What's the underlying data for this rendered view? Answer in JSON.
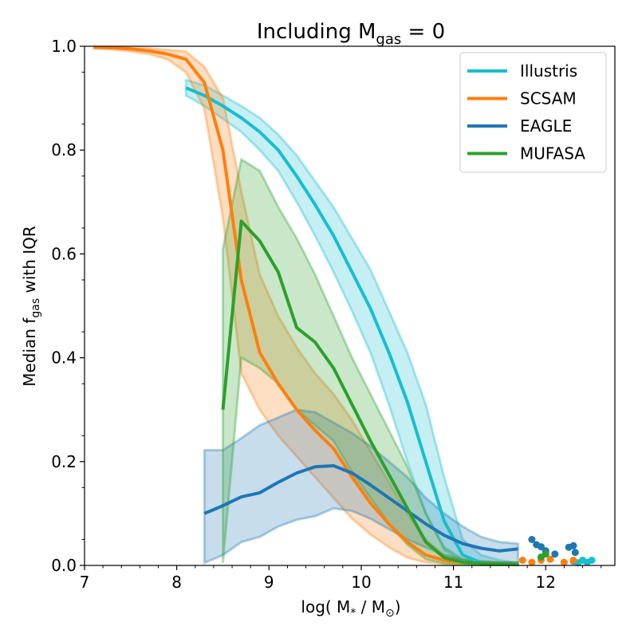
{
  "chart_data": {
    "type": "line",
    "title_main": "Including M",
    "title_sub": "gas",
    "title_tail": " = 0",
    "xlabel_pre": "log( M",
    "xlabel_sub": "*",
    "xlabel_mid": " / M",
    "xlabel_sub2": "⊙",
    "xlabel_post": ")",
    "ylabel_pre": "Median f",
    "ylabel_sub": "gas",
    "ylabel_post": "   with IQR",
    "xlim": [
      7,
      12.75
    ],
    "ylim": [
      0,
      1
    ],
    "xticks": [
      "7",
      "8",
      "9",
      "10",
      "11",
      "12"
    ],
    "yticks": [
      "0.0",
      "0.2",
      "0.4",
      "0.6",
      "0.8",
      "1.0"
    ],
    "legend_position": "top-right",
    "series": [
      {
        "name": "Illustris",
        "color": "#17becf",
        "x": [
          8.1,
          8.3,
          8.5,
          8.7,
          8.9,
          9.1,
          9.3,
          9.5,
          9.7,
          9.9,
          10.1,
          10.3,
          10.5,
          10.7,
          10.9,
          11.1,
          11.3,
          11.5,
          11.7
        ],
        "median": [
          0.92,
          0.905,
          0.885,
          0.862,
          0.835,
          0.8,
          0.75,
          0.695,
          0.635,
          0.565,
          0.495,
          0.41,
          0.315,
          0.2,
          0.085,
          0.02,
          0.005,
          0.003,
          0.002
        ],
        "q1": [
          0.905,
          0.885,
          0.86,
          0.835,
          0.8,
          0.76,
          0.7,
          0.635,
          0.565,
          0.49,
          0.41,
          0.31,
          0.2,
          0.1,
          0.03,
          0.005,
          0.002,
          0.001,
          0.001
        ],
        "q3": [
          0.935,
          0.925,
          0.905,
          0.885,
          0.862,
          0.83,
          0.79,
          0.74,
          0.69,
          0.63,
          0.57,
          0.49,
          0.41,
          0.31,
          0.17,
          0.05,
          0.02,
          0.01,
          0.005
        ],
        "points_x": [
          12.3,
          12.35,
          12.4,
          12.45,
          12.5
        ],
        "points_y": [
          0.008,
          0.005,
          0.01,
          0.006,
          0.01
        ]
      },
      {
        "name": "SCSAM",
        "color": "#ff7f0e",
        "x": [
          7.1,
          7.3,
          7.5,
          7.7,
          7.9,
          8.1,
          8.3,
          8.5,
          8.7,
          8.9,
          9.1,
          9.3,
          9.5,
          9.7,
          9.9,
          10.1,
          10.3,
          10.5,
          10.7,
          10.9,
          11.1,
          11.3,
          11.5,
          11.7
        ],
        "median": [
          0.998,
          0.997,
          0.995,
          0.991,
          0.985,
          0.975,
          0.93,
          0.8,
          0.55,
          0.41,
          0.35,
          0.3,
          0.26,
          0.225,
          0.17,
          0.12,
          0.08,
          0.045,
          0.02,
          0.01,
          0.006,
          0.004,
          0.003,
          0.002
        ],
        "q1": [
          0.996,
          0.994,
          0.99,
          0.985,
          0.975,
          0.95,
          0.88,
          0.67,
          0.37,
          0.3,
          0.25,
          0.21,
          0.17,
          0.13,
          0.09,
          0.06,
          0.035,
          0.015,
          0.006,
          0.003,
          0.002,
          0.001,
          0.001,
          0.001
        ],
        "q3": [
          0.999,
          0.999,
          0.998,
          0.996,
          0.993,
          0.99,
          0.96,
          0.9,
          0.72,
          0.56,
          0.48,
          0.42,
          0.37,
          0.33,
          0.28,
          0.22,
          0.16,
          0.1,
          0.05,
          0.02,
          0.012,
          0.008,
          0.006,
          0.005
        ],
        "points_x": [
          11.75,
          11.85,
          11.95,
          12.05,
          12.2,
          12.3
        ],
        "points_y": [
          0.01,
          0.006,
          0.01,
          0.012,
          0.006,
          0.01
        ]
      },
      {
        "name": "EAGLE",
        "color": "#1f77b4",
        "x": [
          8.3,
          8.5,
          8.7,
          8.9,
          9.1,
          9.3,
          9.5,
          9.7,
          9.9,
          10.1,
          10.3,
          10.5,
          10.7,
          10.9,
          11.1,
          11.3,
          11.5,
          11.7
        ],
        "median": [
          0.1,
          0.115,
          0.132,
          0.14,
          0.16,
          0.178,
          0.19,
          0.192,
          0.178,
          0.155,
          0.13,
          0.105,
          0.08,
          0.058,
          0.042,
          0.033,
          0.028,
          0.032
        ],
        "q1": [
          0.005,
          0.02,
          0.045,
          0.055,
          0.075,
          0.088,
          0.095,
          0.11,
          0.105,
          0.09,
          0.07,
          0.05,
          0.035,
          0.02,
          0.01,
          0.006,
          0.005,
          0.006
        ],
        "q3": [
          0.222,
          0.222,
          0.245,
          0.27,
          0.285,
          0.3,
          0.295,
          0.275,
          0.255,
          0.23,
          0.2,
          0.17,
          0.13,
          0.1,
          0.075,
          0.055,
          0.045,
          0.042
        ],
        "points_x": [
          11.85,
          11.9,
          11.95,
          12.0,
          12.1,
          12.25,
          12.3,
          12.32
        ],
        "points_y": [
          0.05,
          0.04,
          0.036,
          0.028,
          0.022,
          0.035,
          0.038,
          0.025
        ]
      },
      {
        "name": "MUFASA",
        "color": "#2ca02c",
        "x": [
          8.5,
          8.7,
          8.9,
          9.1,
          9.3,
          9.5,
          9.7,
          9.9,
          10.1,
          10.3,
          10.5,
          10.7,
          10.9,
          11.1,
          11.3,
          11.5,
          11.7
        ],
        "median": [
          0.3,
          0.663,
          0.625,
          0.565,
          0.458,
          0.43,
          0.38,
          0.31,
          0.24,
          0.175,
          0.11,
          0.045,
          0.015,
          0.006,
          0.004,
          0.003,
          0.002
        ],
        "q1": [
          0.005,
          0.4,
          0.38,
          0.35,
          0.3,
          0.27,
          0.24,
          0.18,
          0.13,
          0.08,
          0.04,
          0.012,
          0.004,
          0.002,
          0.001,
          0.001,
          0.001
        ],
        "q3": [
          0.61,
          0.782,
          0.76,
          0.69,
          0.63,
          0.56,
          0.48,
          0.4,
          0.33,
          0.26,
          0.19,
          0.1,
          0.035,
          0.012,
          0.008,
          0.006,
          0.005
        ],
        "points_x": [
          11.95,
          12.0
        ],
        "points_y": [
          0.016,
          0.022
        ]
      }
    ]
  }
}
